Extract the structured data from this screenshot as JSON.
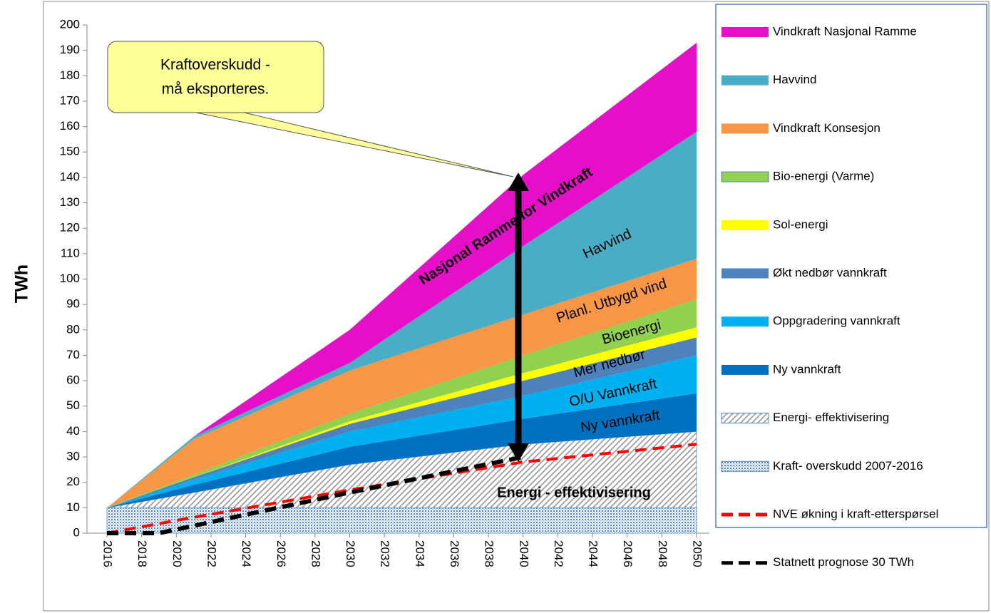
{
  "chart_data": {
    "type": "stacked-area",
    "y_label": "TWh",
    "xlim": [
      2016,
      2050
    ],
    "xticks": [
      2016,
      2018,
      2020,
      2022,
      2024,
      2026,
      2028,
      2030,
      2032,
      2034,
      2036,
      2038,
      2040,
      2042,
      2044,
      2046,
      2048,
      2050
    ],
    "ylim": [
      0,
      200
    ],
    "yticks": [
      0,
      10,
      20,
      30,
      40,
      50,
      60,
      70,
      80,
      90,
      100,
      110,
      120,
      130,
      140,
      150,
      160,
      170,
      180,
      190,
      200
    ],
    "grid": false,
    "legend": "right",
    "x": [
      2016,
      2021,
      2030,
      2040,
      2050
    ],
    "series": [
      {
        "name": "Kraft- overskudd 2007-2016",
        "color": "#4f81bd",
        "pattern": "dots",
        "values": [
          10,
          10,
          10,
          10,
          10
        ]
      },
      {
        "name": "Energi- effektivisering",
        "color": "#a6a6a6",
        "pattern": "hatch",
        "values": [
          0,
          6,
          17,
          25,
          30
        ]
      },
      {
        "name": "Ny vannkraft",
        "color": "#0070c0",
        "values": [
          0,
          3,
          7,
          10,
          15
        ]
      },
      {
        "name": "Oppgradering vannkraft",
        "color": "#00b0f0",
        "values": [
          0,
          2,
          6,
          9,
          15
        ]
      },
      {
        "name": "Økt nedbør vannkraft",
        "color": "#4f81bd",
        "values": [
          0,
          1,
          3,
          6,
          7
        ]
      },
      {
        "name": "Sol-energi",
        "color": "#ffff00",
        "values": [
          0,
          0,
          1,
          3,
          4
        ]
      },
      {
        "name": "Bio-energi (Varme)",
        "color": "#92d050",
        "values": [
          0,
          1,
          3,
          7,
          11
        ]
      },
      {
        "name": "Vindkraft Konsesjon",
        "color": "#f79646",
        "values": [
          0,
          14,
          17,
          16,
          16
        ]
      },
      {
        "name": "Havvind",
        "color": "#4bacc6",
        "values": [
          0,
          1,
          3,
          27,
          50
        ]
      },
      {
        "name": "Vindkraft Nasjonal Ramme",
        "color": "#e60fc8",
        "values": [
          0,
          0,
          13,
          28,
          35
        ]
      }
    ],
    "lines": [
      {
        "name": "NVE økning i kraft-etterspørsel",
        "color": "#ff0000",
        "style": "dashed",
        "x": [
          2016,
          2020,
          2030,
          2040,
          2050
        ],
        "values": [
          0,
          5,
          17,
          28,
          35
        ]
      },
      {
        "name": "Statnett prognose 30 TWh",
        "color": "#000000",
        "style": "dashed",
        "x": [
          2016,
          2019,
          2030,
          2040
        ],
        "values": [
          0,
          0,
          16,
          30
        ]
      }
    ],
    "annotations": [
      "Nasjonal Ramme for Vindkraft",
      "Havvind",
      "Planl. Utbygd vind",
      "Bioenergi",
      "Mer nedbør",
      "O/U Vannkraft",
      "Ny vannkraft",
      "Energi - effektivisering"
    ],
    "callout": [
      "Kraftoverskudd -",
      "må eksporteres."
    ]
  }
}
